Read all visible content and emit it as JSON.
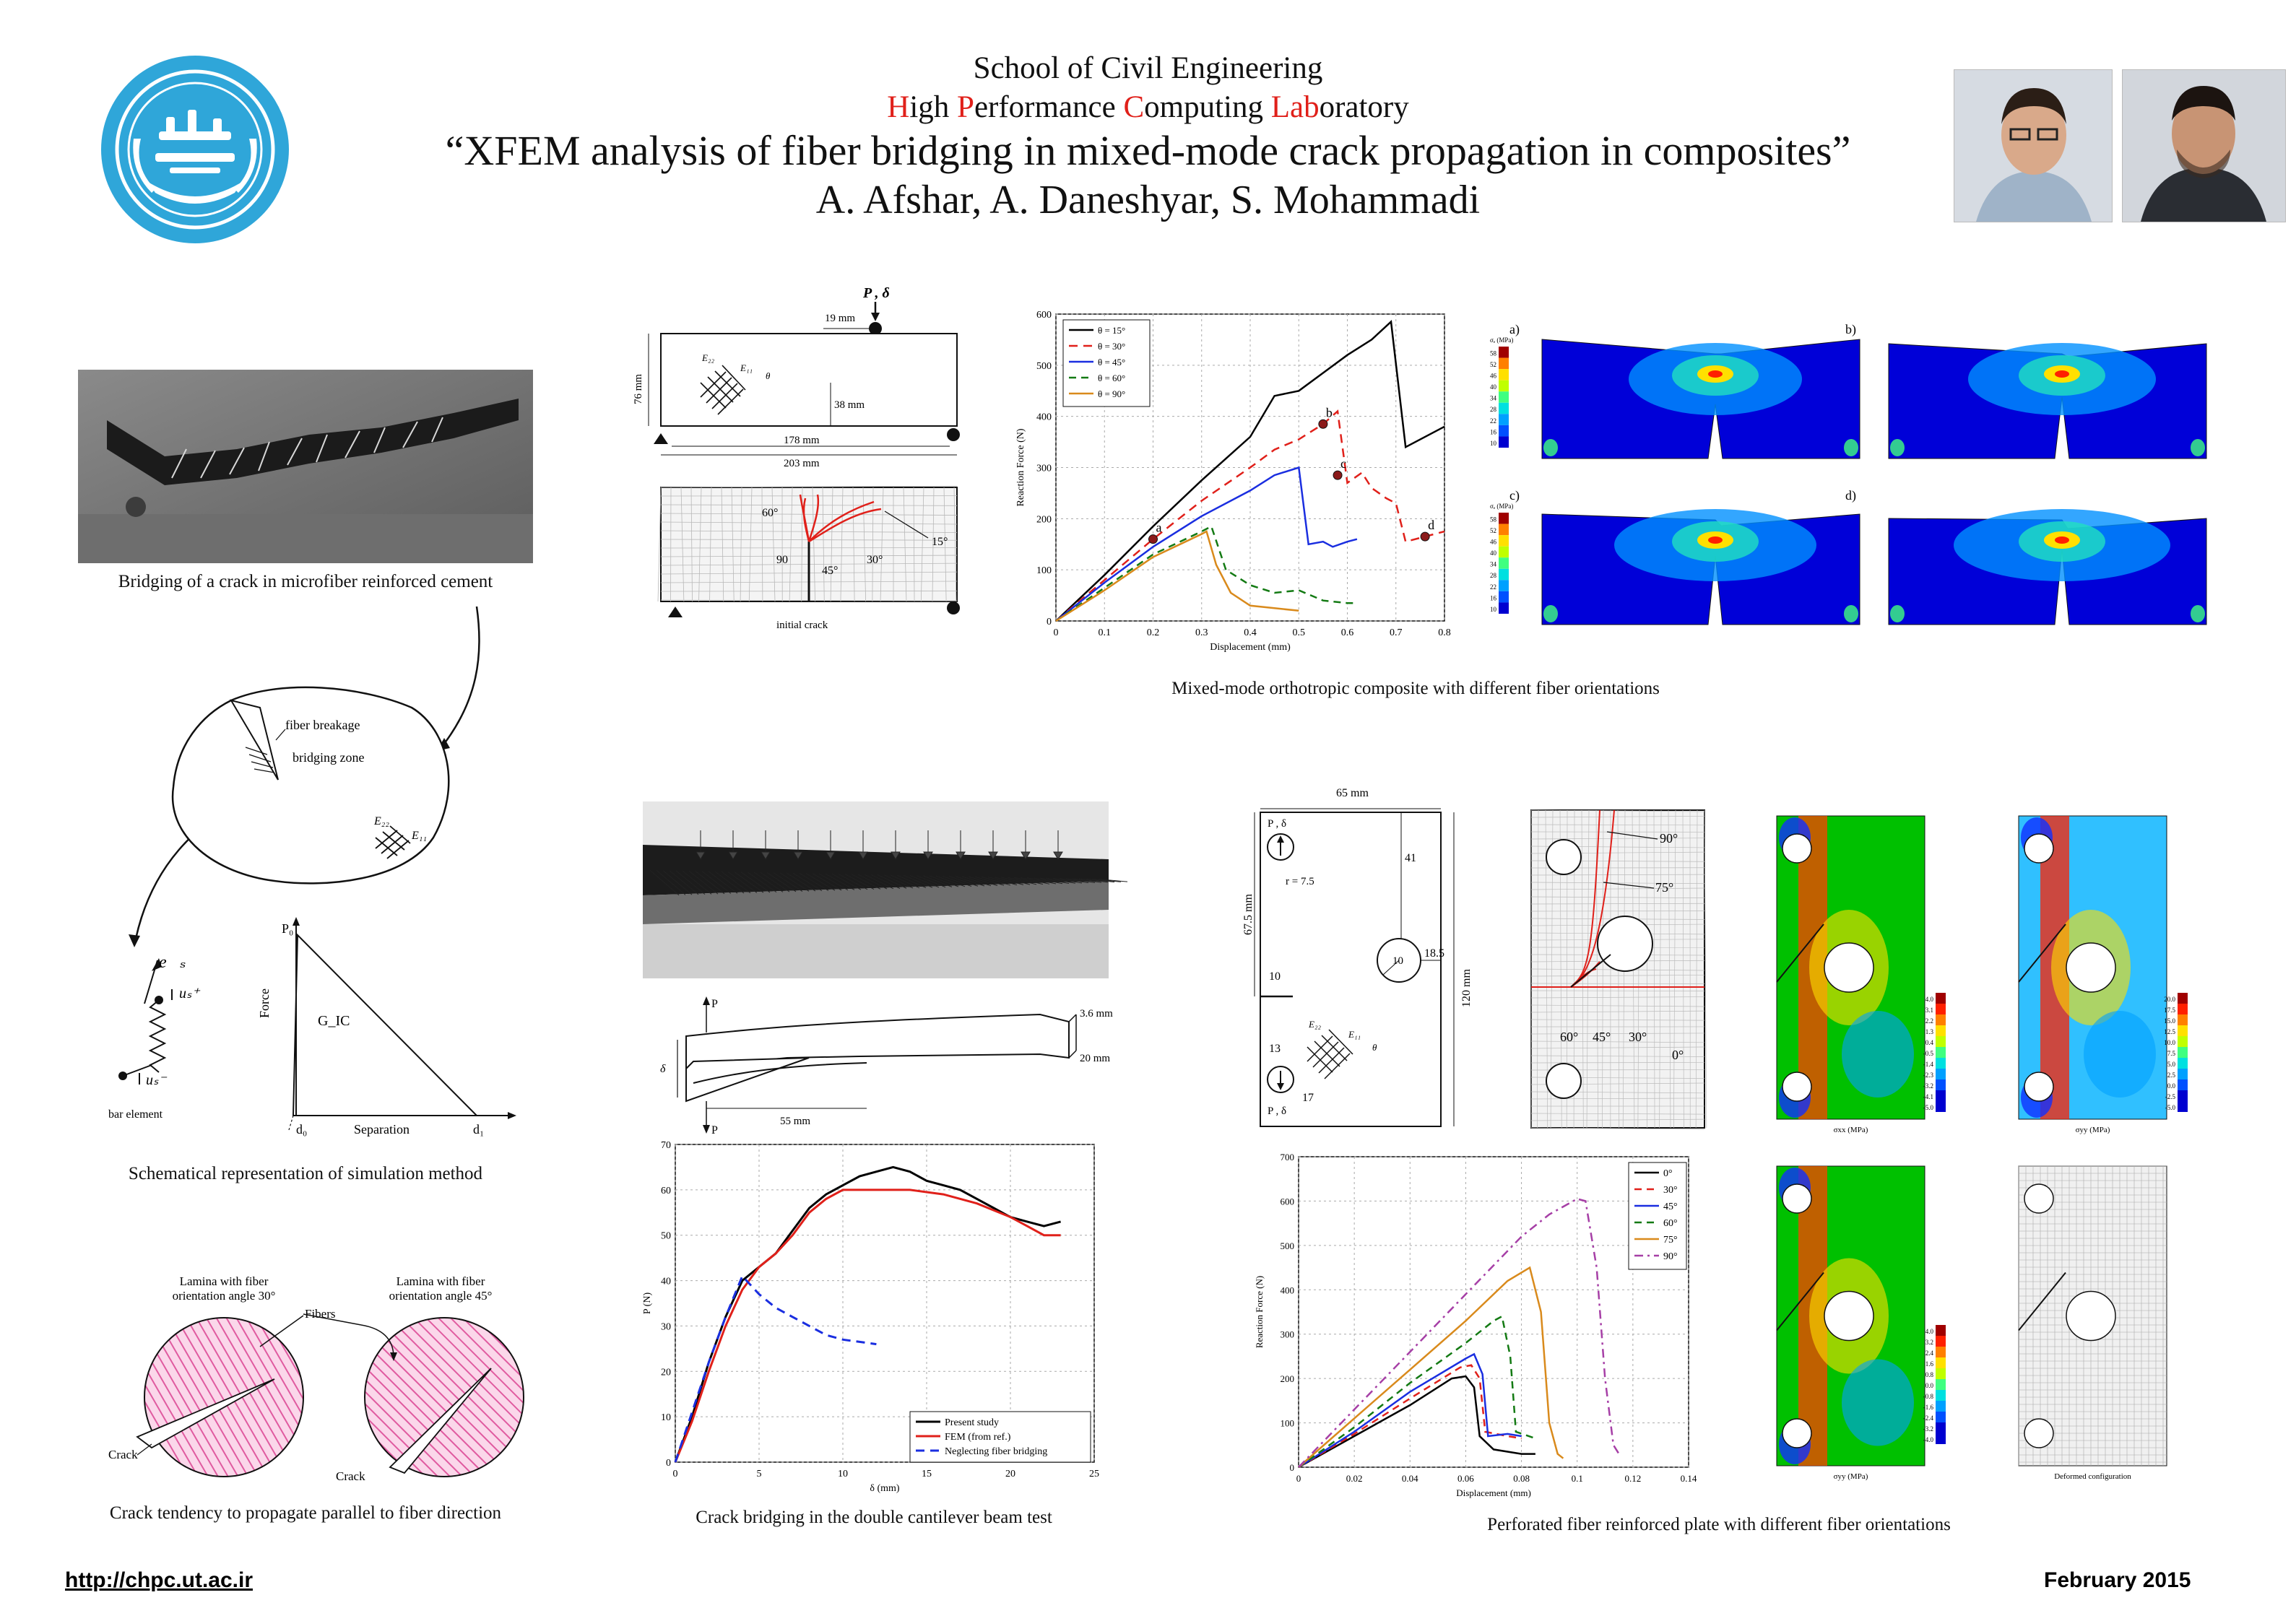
{
  "header": {
    "school": "School of Civil Engineering",
    "lab_parts": [
      [
        "H",
        "igh "
      ],
      [
        "P",
        "erformance "
      ],
      [
        "C",
        "omputing "
      ],
      [
        "Lab",
        "oratory"
      ]
    ],
    "title": "“XFEM analysis of fiber bridging in mixed-mode crack propagation in composites”",
    "authors": "A. Afshar, A. Daneshyar, S. Mohammadi"
  },
  "footer": {
    "url": "http://chpc.ut.ac.ir",
    "date": "February 2015"
  },
  "captions": {
    "bridging": "Bridging of a crack in microfiber reinforced cement",
    "schematic": "Schematical representation of simulation method",
    "tendency": "Crack tendency to propagate parallel to fiber direction",
    "mixed_mode": "Mixed-mode orthotropic composite with different fiber orientations",
    "dcb": "Crack bridging in the double cantilever beam test",
    "perforated": "Perforated fiber reinforced plate with different fiber orientations"
  },
  "schematic": {
    "fiber_breakage": "fiber breakage",
    "bridging_zone": "bridging zone",
    "e22": "E₂₂",
    "e11": "E₁₁",
    "es": "e⃗ₛ",
    "us_plus": "uₛ⁺",
    "us_minus": "uₛ⁻",
    "bar_element": "bar element",
    "p0": "P₀",
    "force": "Force",
    "gic": "G_IC",
    "d0": "d₀",
    "d1": "d₁",
    "separation": "Separation"
  },
  "tendency": {
    "lam30": [
      "Lamina with fiber",
      "orientation angle 30°"
    ],
    "lam45": [
      "Lamina with fiber",
      "orientation angle 45°"
    ],
    "fibers": "Fibers",
    "crack": "Crack"
  },
  "beam": {
    "load": "P , δ",
    "d19": "19 mm",
    "d76": "76 mm",
    "d38": "38 mm",
    "d178": "178 mm",
    "d203": "203 mm",
    "e22": "E₂₂",
    "e11": "E₁₁",
    "theta": "θ",
    "initial_crack": "initial crack",
    "angles": [
      "60°",
      "90",
      "45°",
      "30°",
      "15°"
    ]
  },
  "contours": {
    "labels": [
      "a)",
      "b)",
      "c)",
      "d)"
    ],
    "unit": "σₑ (MPa)",
    "ticks": [
      "58",
      "52",
      "46",
      "40",
      "34",
      "28",
      "22",
      "16",
      "10"
    ]
  },
  "dcb": {
    "p": "P",
    "delta": "δ",
    "d36": "3.6 mm",
    "d20": "20 mm",
    "d55": "55 mm"
  },
  "plate": {
    "d65": "65 mm",
    "d675": "67.5 mm",
    "d120": "120 mm",
    "load_top": "P , δ",
    "load_bot": "P , δ",
    "r": "r = 7.5",
    "n41": "41",
    "n10a": "10",
    "n185": "18.5",
    "n10b": "10",
    "n13": "13",
    "n17": "17",
    "e22": "E₂₂",
    "e11": "E₁₁",
    "theta": "θ",
    "mesh_angles": [
      "90°",
      "75°",
      "60°",
      "45°",
      "30°",
      "0°"
    ],
    "cont_labels": [
      "σxx (MPa)",
      "σyy (MPa)",
      "σyy (MPa)",
      "Deformed configuration"
    ],
    "ticks1": [
      "4.0",
      "3.1",
      "2.2",
      "1.3",
      "0.4",
      "-0.5",
      "-1.4",
      "-2.3",
      "-3.2",
      "-4.1",
      "-5.0"
    ],
    "ticks2": [
      "20.0",
      "17.5",
      "15.0",
      "12.5",
      "10.0",
      "7.5",
      "5.0",
      "2.5",
      "0.0",
      "-2.5",
      "-5.0"
    ],
    "ticks3": [
      "4.0",
      "3.2",
      "2.4",
      "1.6",
      "0.8",
      "0.0",
      "-0.8",
      "-1.6",
      "-2.4",
      "-3.2",
      "-4.0"
    ]
  },
  "chart_data": [
    {
      "type": "line",
      "xlabel": "Displacement (mm)",
      "ylabel": "Reaction Force (N)",
      "xlim": [
        0,
        0.8
      ],
      "ylim": [
        0,
        600
      ],
      "xticks": [
        "0",
        "0.1",
        "0.2",
        "0.3",
        "0.4",
        "0.5",
        "0.6",
        "0.7",
        "0.8"
      ],
      "yticks": [
        "0",
        "100",
        "200",
        "300",
        "400",
        "500",
        "600"
      ],
      "point_labels": [
        "a",
        "b",
        "c",
        "d"
      ],
      "series": [
        {
          "name": "θ = 15°",
          "color": "#000000",
          "dash": "",
          "points": [
            [
              0,
              0
            ],
            [
              0.1,
              90
            ],
            [
              0.2,
              185
            ],
            [
              0.3,
              275
            ],
            [
              0.4,
              360
            ],
            [
              0.45,
              440
            ],
            [
              0.5,
              450
            ],
            [
              0.55,
              485
            ],
            [
              0.6,
              520
            ],
            [
              0.65,
              550
            ],
            [
              0.69,
              585
            ],
            [
              0.72,
              340
            ],
            [
              0.8,
              380
            ]
          ]
        },
        {
          "name": "θ = 30°",
          "color": "#e0201a",
          "dash": "12,8",
          "points": [
            [
              0,
              0
            ],
            [
              0.2,
              160
            ],
            [
              0.3,
              235
            ],
            [
              0.4,
              300
            ],
            [
              0.45,
              335
            ],
            [
              0.5,
              355
            ],
            [
              0.55,
              385
            ],
            [
              0.58,
              410
            ],
            [
              0.6,
              270
            ],
            [
              0.63,
              290
            ],
            [
              0.65,
              260
            ],
            [
              0.68,
              240
            ],
            [
              0.7,
              230
            ],
            [
              0.72,
              155
            ],
            [
              0.76,
              165
            ],
            [
              0.8,
              175
            ]
          ]
        },
        {
          "name": "θ = 45°",
          "color": "#1a2ee0",
          "dash": "",
          "points": [
            [
              0,
              0
            ],
            [
              0.1,
              75
            ],
            [
              0.2,
              145
            ],
            [
              0.3,
              205
            ],
            [
              0.4,
              255
            ],
            [
              0.45,
              285
            ],
            [
              0.5,
              300
            ],
            [
              0.52,
              150
            ],
            [
              0.55,
              155
            ],
            [
              0.57,
              145
            ],
            [
              0.6,
              155
            ],
            [
              0.62,
              160
            ]
          ]
        },
        {
          "name": "θ = 60°",
          "color": "#137a13",
          "dash": "10,7",
          "points": [
            [
              0,
              0
            ],
            [
              0.1,
              65
            ],
            [
              0.2,
              130
            ],
            [
              0.3,
              175
            ],
            [
              0.32,
              185
            ],
            [
              0.35,
              100
            ],
            [
              0.4,
              70
            ],
            [
              0.45,
              55
            ],
            [
              0.5,
              60
            ],
            [
              0.55,
              40
            ],
            [
              0.6,
              35
            ],
            [
              0.62,
              35
            ]
          ]
        },
        {
          "name": "θ = 90°",
          "color": "#d98a1c",
          "dash": "",
          "points": [
            [
              0,
              0
            ],
            [
              0.1,
              60
            ],
            [
              0.2,
              125
            ],
            [
              0.3,
              170
            ],
            [
              0.31,
              175
            ],
            [
              0.33,
              110
            ],
            [
              0.36,
              55
            ],
            [
              0.4,
              30
            ],
            [
              0.45,
              25
            ],
            [
              0.5,
              20
            ]
          ]
        }
      ]
    },
    {
      "type": "line",
      "xlabel": "δ (mm)",
      "ylabel": "P (N)",
      "xlim": [
        0,
        25
      ],
      "ylim": [
        0,
        70
      ],
      "xticks": [
        "0",
        "5",
        "10",
        "15",
        "20",
        "25"
      ],
      "yticks": [
        "0",
        "10",
        "20",
        "30",
        "40",
        "50",
        "60",
        "70"
      ],
      "series": [
        {
          "name": "Present study",
          "color": "#000000",
          "dash": "",
          "points": [
            [
              0,
              0
            ],
            [
              1,
              10
            ],
            [
              2,
              22
            ],
            [
              3,
              32
            ],
            [
              4,
              40
            ],
            [
              5,
              43
            ],
            [
              6,
              46
            ],
            [
              7,
              51
            ],
            [
              8,
              56
            ],
            [
              9,
              59
            ],
            [
              10,
              61
            ],
            [
              11,
              63
            ],
            [
              12,
              64
            ],
            [
              13,
              65
            ],
            [
              14,
              64
            ],
            [
              15,
              62
            ],
            [
              16,
              61
            ],
            [
              17,
              60
            ],
            [
              18,
              58
            ],
            [
              19,
              56
            ],
            [
              20,
              54
            ],
            [
              21,
              53
            ],
            [
              22,
              52
            ],
            [
              23,
              53
            ]
          ]
        },
        {
          "name": "FEM (from ref.)",
          "color": "#e0201a",
          "dash": "",
          "points": [
            [
              0,
              0
            ],
            [
              1,
              9
            ],
            [
              2,
              20
            ],
            [
              3,
              30
            ],
            [
              4,
              38
            ],
            [
              5,
              43
            ],
            [
              6,
              46
            ],
            [
              7,
              50
            ],
            [
              8,
              55
            ],
            [
              9,
              58
            ],
            [
              10,
              60
            ],
            [
              12,
              60
            ],
            [
              14,
              60
            ],
            [
              16,
              59
            ],
            [
              18,
              57
            ],
            [
              20,
              54
            ],
            [
              21,
              52
            ],
            [
              22,
              50
            ],
            [
              23,
              50
            ]
          ]
        },
        {
          "name": "Neglecting fiber bridging",
          "color": "#1a2ee0",
          "dash": "12,8",
          "points": [
            [
              0,
              0
            ],
            [
              1,
              11
            ],
            [
              2,
              22
            ],
            [
              3,
              32
            ],
            [
              4,
              41
            ],
            [
              5,
              37
            ],
            [
              6,
              34
            ],
            [
              7,
              32
            ],
            [
              8,
              30
            ],
            [
              9,
              28
            ],
            [
              10,
              27
            ],
            [
              11,
              26.5
            ],
            [
              12,
              26
            ]
          ]
        }
      ]
    },
    {
      "type": "line",
      "xlabel": "Displacement (mm)",
      "ylabel": "Reaction Force (N)",
      "xlim": [
        0,
        0.14
      ],
      "ylim": [
        0,
        700
      ],
      "xticks": [
        "0",
        "0.02",
        "0.04",
        "0.06",
        "0.08",
        "0.1",
        "0.12",
        "0.14"
      ],
      "yticks": [
        "0",
        "100",
        "200",
        "300",
        "400",
        "500",
        "600",
        "700"
      ],
      "series": [
        {
          "name": "0°",
          "color": "#000000",
          "dash": "",
          "points": [
            [
              0,
              0
            ],
            [
              0.02,
              70
            ],
            [
              0.04,
              140
            ],
            [
              0.055,
              200
            ],
            [
              0.06,
              205
            ],
            [
              0.063,
              180
            ],
            [
              0.065,
              70
            ],
            [
              0.07,
              40
            ],
            [
              0.08,
              30
            ],
            [
              0.085,
              30
            ]
          ]
        },
        {
          "name": "30°",
          "color": "#e0201a",
          "dash": "10,7",
          "points": [
            [
              0,
              0
            ],
            [
              0.02,
              75
            ],
            [
              0.04,
              155
            ],
            [
              0.058,
              225
            ],
            [
              0.062,
              230
            ],
            [
              0.065,
              200
            ],
            [
              0.067,
              80
            ],
            [
              0.075,
              70
            ],
            [
              0.08,
              65
            ]
          ]
        },
        {
          "name": "45°",
          "color": "#1a2ee0",
          "dash": "",
          "points": [
            [
              0,
              0
            ],
            [
              0.02,
              80
            ],
            [
              0.04,
              170
            ],
            [
              0.06,
              245
            ],
            [
              0.063,
              255
            ],
            [
              0.066,
              210
            ],
            [
              0.068,
              70
            ],
            [
              0.075,
              75
            ],
            [
              0.08,
              70
            ]
          ]
        },
        {
          "name": "60°",
          "color": "#137a13",
          "dash": "10,7",
          "points": [
            [
              0,
              0
            ],
            [
              0.02,
              90
            ],
            [
              0.04,
              190
            ],
            [
              0.06,
              280
            ],
            [
              0.07,
              330
            ],
            [
              0.073,
              340
            ],
            [
              0.076,
              250
            ],
            [
              0.078,
              80
            ],
            [
              0.085,
              65
            ]
          ]
        },
        {
          "name": "75°",
          "color": "#d98a1c",
          "dash": "",
          "points": [
            [
              0,
              0
            ],
            [
              0.02,
              110
            ],
            [
              0.04,
              220
            ],
            [
              0.06,
              330
            ],
            [
              0.075,
              420
            ],
            [
              0.083,
              450
            ],
            [
              0.087,
              350
            ],
            [
              0.09,
              100
            ],
            [
              0.093,
              30
            ],
            [
              0.095,
              20
            ]
          ]
        },
        {
          "name": "90°",
          "color": "#a63fa6",
          "dash": "12,6,3,6",
          "points": [
            [
              0,
              0
            ],
            [
              0.02,
              130
            ],
            [
              0.04,
              260
            ],
            [
              0.06,
              390
            ],
            [
              0.08,
              520
            ],
            [
              0.09,
              570
            ],
            [
              0.1,
              605
            ],
            [
              0.103,
              600
            ],
            [
              0.107,
              450
            ],
            [
              0.11,
              200
            ],
            [
              0.113,
              50
            ],
            [
              0.115,
              30
            ]
          ]
        }
      ]
    }
  ]
}
